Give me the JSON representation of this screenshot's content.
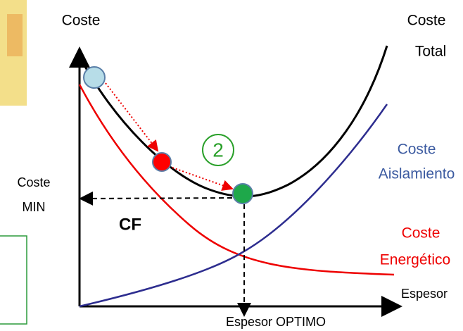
{
  "diagram": {
    "y_axis_label": "Coste",
    "x_axis_label": "Espesor",
    "optimum_label": "Espesor OPTIMO",
    "min_label": [
      "Coste",
      "MIN"
    ],
    "total_label": [
      "Coste",
      "Total"
    ],
    "insulation_label": [
      "Coste",
      "Aislamiento"
    ],
    "energy_label": [
      "Coste",
      "Energético"
    ],
    "cf_label": "CF",
    "step_label": "2"
  }
}
